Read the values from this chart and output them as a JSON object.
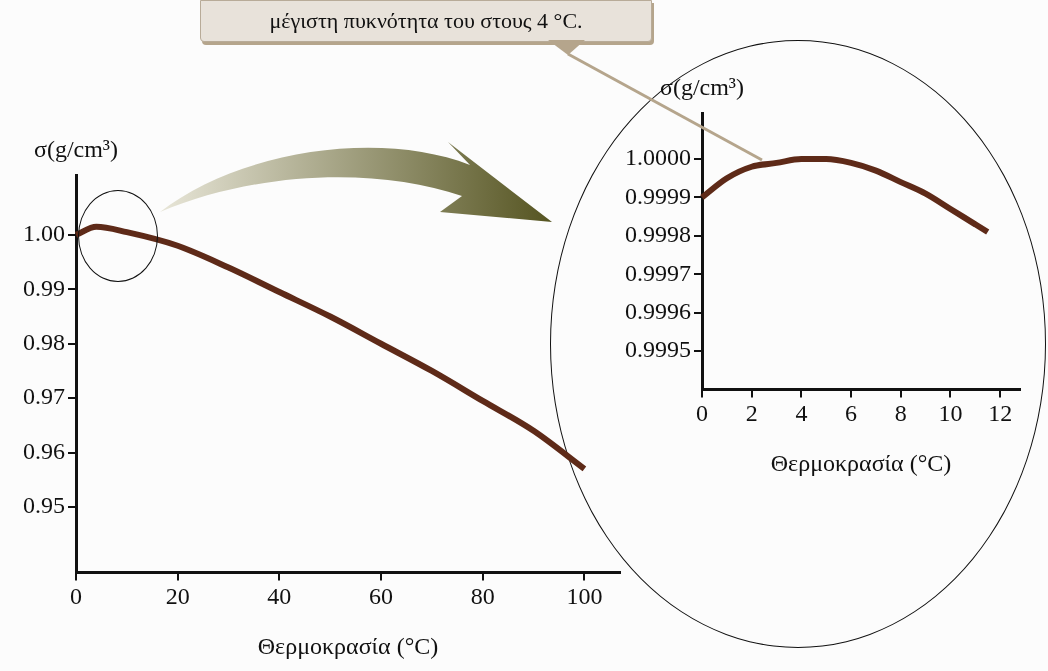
{
  "chart_data": [
    {
      "type": "line",
      "xlabel": "Θερμοκρασία (°C)",
      "ylabel": "σ(g/cm³)",
      "color": "#5e2a18",
      "x": [
        0,
        4,
        10,
        20,
        30,
        40,
        50,
        60,
        70,
        80,
        90,
        100
      ],
      "values": [
        1.0,
        1.0015,
        1.0005,
        0.998,
        0.994,
        0.9895,
        0.985,
        0.98,
        0.975,
        0.9695,
        0.964,
        0.957
      ],
      "xlim": [
        0,
        107
      ],
      "xticks": [
        0,
        20,
        40,
        60,
        80,
        100
      ],
      "ylim": [
        0.938,
        1.011
      ],
      "yticks": [
        {
          "value": 1,
          "label": "1.00"
        },
        0.99,
        0.98,
        0.97,
        0.96,
        0.95
      ],
      "grid": false
    },
    {
      "type": "line",
      "xlabel": "Θερμοκρασία (°C)",
      "ylabel": "σ(g/cm³)",
      "color": "#5e2a18",
      "x": [
        0,
        1,
        2,
        3,
        4,
        5,
        6,
        7,
        8,
        9,
        10,
        11,
        11.5
      ],
      "values": [
        0.9999,
        0.99995,
        0.99998,
        0.99999,
        1.0,
        1.0,
        0.99999,
        0.99997,
        0.99994,
        0.99991,
        0.99987,
        0.99983,
        0.99981
      ],
      "xlim": [
        0,
        12.8
      ],
      "xticks": [
        0,
        2,
        4,
        6,
        8,
        10,
        12
      ],
      "ylim": [
        0.9994,
        1.00012
      ],
      "yticks": [
        {
          "value": 1,
          "label": "1.0000"
        },
        0.9999,
        0.9998,
        0.9997,
        0.9996,
        0.9995
      ],
      "grid": false,
      "annotations": [
        "μέγιστη πυκνότητα του στους 4 °C."
      ]
    }
  ]
}
